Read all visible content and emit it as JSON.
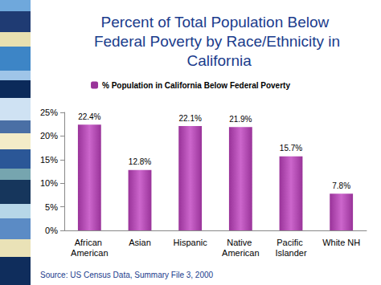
{
  "chart_data": {
    "type": "bar",
    "title": "Percent of Total Population Below Federal Poverty by Race/Ethnicity in California",
    "annotation": "Source: US Census Data, Summary File 3, 2000",
    "categories": [
      "African American",
      "Asian",
      "Hispanic",
      "Native American",
      "Pacific Islander",
      "White NH"
    ],
    "series": [
      {
        "name": "% Population in California Below Federal Poverty",
        "color": "#993399",
        "values": [
          22.4,
          12.8,
          22.1,
          21.9,
          15.7,
          7.8
        ],
        "value_labels": [
          "22.4%",
          "12.8%",
          "22.1%",
          "21.9%",
          "15.7%",
          "7.8%"
        ]
      }
    ],
    "ylim": [
      0,
      25
    ],
    "yticks": [
      {
        "value": 0,
        "label": "0%"
      },
      {
        "value": 5,
        "label": "5%"
      },
      {
        "value": 10,
        "label": "10%"
      },
      {
        "value": 15,
        "label": "15%"
      },
      {
        "value": 20,
        "label": "20%"
      },
      {
        "value": 25,
        "label": "25%"
      }
    ],
    "grid": false,
    "legend": "top",
    "data_labels": true
  }
}
